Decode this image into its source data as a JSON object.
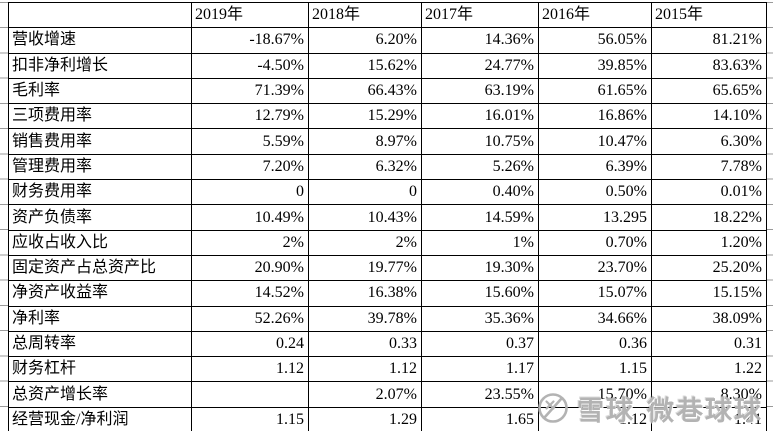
{
  "table": {
    "columns": [
      "",
      "2019年",
      "2018年",
      "2017年",
      "2016年",
      "2015年"
    ],
    "rows": [
      {
        "label": "营收增速",
        "values": [
          "-18.67%",
          "6.20%",
          "14.36%",
          "56.05%",
          "81.21%"
        ]
      },
      {
        "label": "扣非净利增长",
        "values": [
          "-4.50%",
          "15.62%",
          "24.77%",
          "39.85%",
          "83.63%"
        ]
      },
      {
        "label": "毛利率",
        "values": [
          "71.39%",
          "66.43%",
          "63.19%",
          "61.65%",
          "65.65%"
        ]
      },
      {
        "label": "三项费用率",
        "values": [
          "12.79%",
          "15.29%",
          "16.01%",
          "16.86%",
          "14.10%"
        ]
      },
      {
        "label": "销售费用率",
        "values": [
          "5.59%",
          "8.97%",
          "10.75%",
          "10.47%",
          "6.30%"
        ]
      },
      {
        "label": "管理费用率",
        "values": [
          "7.20%",
          "6.32%",
          "5.26%",
          "6.39%",
          "7.78%"
        ]
      },
      {
        "label": "财务费用率",
        "values": [
          "0",
          "0",
          "0.40%",
          "0.50%",
          "0.01%"
        ]
      },
      {
        "label": "资产负债率",
        "values": [
          "10.49%",
          "10.43%",
          "14.59%",
          "13.295",
          "18.22%"
        ]
      },
      {
        "label": "应收占收入比",
        "values": [
          "2%",
          "2%",
          "1%",
          "0.70%",
          "1.20%"
        ]
      },
      {
        "label": "固定资产占总资产比",
        "values": [
          "20.90%",
          "19.77%",
          "19.30%",
          "23.70%",
          "25.20%"
        ]
      },
      {
        "label": "净资产收益率",
        "values": [
          "14.52%",
          "16.38%",
          "15.60%",
          "15.07%",
          "15.15%"
        ]
      },
      {
        "label": "净利率",
        "values": [
          "52.26%",
          "39.78%",
          "35.36%",
          "34.66%",
          "38.09%"
        ]
      },
      {
        "label": "总周转率",
        "values": [
          "0.24",
          "0.33",
          "0.37",
          "0.36",
          "0.31"
        ]
      },
      {
        "label": "财务杠杆",
        "values": [
          "1.12",
          "1.12",
          "1.17",
          "1.15",
          "1.22"
        ]
      },
      {
        "label": "总资产增长率",
        "values": [
          "",
          "2.07%",
          "23.55%",
          "15.70%",
          "8.30%"
        ]
      },
      {
        "label": "经营现金/净利润",
        "values": [
          "1.15",
          "1.29",
          "1.65",
          "1.12",
          "1.41"
        ]
      }
    ]
  },
  "watermark": {
    "logo": "xueqiu-snowball-icon",
    "brand": "雪球",
    "username": "微巷球球"
  },
  "colors": {
    "grid_border": "#000000",
    "outer_gridline": "#9a9a9a",
    "watermark": "#b3b3b3",
    "background": "#ffffff",
    "text": "#000000"
  }
}
